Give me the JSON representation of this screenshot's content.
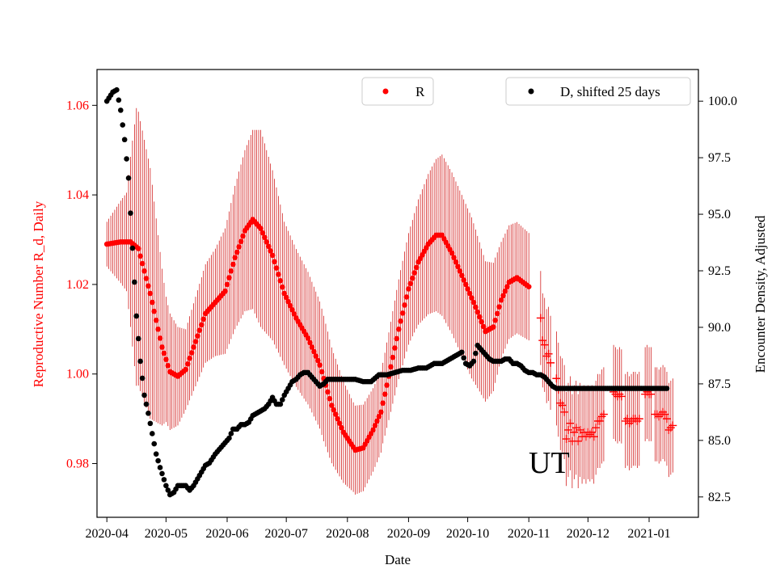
{
  "chart_data": {
    "type": "scatter",
    "annotation": "UT",
    "xlabel": "Date",
    "ylabel_left": "Reproductive Number R_d, Daily",
    "ylabel_right": "Encounter Density, Adjusted",
    "x_ticks": [
      "2020-04",
      "2020-05",
      "2020-06",
      "2020-07",
      "2020-08",
      "2020-09",
      "2020-10",
      "2020-11",
      "2020-12",
      "2021-01"
    ],
    "y_left_ticks": [
      "0.98",
      "1.00",
      "1.02",
      "1.04",
      "1.06"
    ],
    "y_left_range": [
      0.968,
      1.068
    ],
    "y_right_ticks": [
      "82.5",
      "85.0",
      "87.5",
      "90.0",
      "92.5",
      "95.0",
      "97.5",
      "100.0"
    ],
    "y_right_range": [
      81.6,
      101.4
    ],
    "x_range_days": [
      -5,
      300
    ],
    "legend": {
      "r_label": "R",
      "d_label": "D, shifted 25 days"
    },
    "series_R_knots": [
      [
        0,
        1.029
      ],
      [
        7,
        1.0295
      ],
      [
        12,
        1.0295
      ],
      [
        16,
        1.028
      ],
      [
        22,
        1.018
      ],
      [
        28,
        1.006
      ],
      [
        32,
        1.0005
      ],
      [
        36,
        0.9995
      ],
      [
        40,
        1.001
      ],
      [
        44,
        1.006
      ],
      [
        50,
        1.0135
      ],
      [
        56,
        1.0165
      ],
      [
        60,
        1.0185
      ],
      [
        65,
        1.026
      ],
      [
        70,
        1.032
      ],
      [
        74,
        1.0345
      ],
      [
        78,
        1.0325
      ],
      [
        84,
        1.0265
      ],
      [
        90,
        1.018
      ],
      [
        96,
        1.0125
      ],
      [
        102,
        1.008
      ],
      [
        108,
        1.002
      ],
      [
        114,
        0.993
      ],
      [
        120,
        0.987
      ],
      [
        126,
        0.983
      ],
      [
        130,
        0.9835
      ],
      [
        135,
        0.9875
      ],
      [
        139,
        0.9915
      ],
      [
        143,
        0.9995
      ],
      [
        148,
        1.01
      ],
      [
        153,
        1.019
      ],
      [
        158,
        1.025
      ],
      [
        163,
        1.029
      ],
      [
        167,
        1.031
      ],
      [
        170,
        1.031
      ],
      [
        175,
        1.027
      ],
      [
        180,
        1.022
      ],
      [
        186,
        1.016
      ],
      [
        192,
        1.0095
      ],
      [
        196,
        1.0105
      ],
      [
        200,
        1.0165
      ],
      [
        204,
        1.0205
      ],
      [
        208,
        1.0215
      ],
      [
        211,
        1.0205
      ],
      [
        214,
        1.0195
      ]
    ],
    "series_R_spread_knots": [
      [
        0,
        0.005
      ],
      [
        10,
        0.011
      ],
      [
        15,
        0.031
      ],
      [
        22,
        0.028
      ],
      [
        30,
        0.014
      ],
      [
        40,
        0.009
      ],
      [
        55,
        0.012
      ],
      [
        70,
        0.018
      ],
      [
        78,
        0.022
      ],
      [
        90,
        0.016
      ],
      [
        110,
        0.014
      ],
      [
        125,
        0.01
      ],
      [
        140,
        0.009
      ],
      [
        155,
        0.013
      ],
      [
        170,
        0.018
      ],
      [
        185,
        0.018
      ],
      [
        200,
        0.013
      ],
      [
        214,
        0.012
      ]
    ],
    "series_R_plus": [
      [
        220,
        1.0125
      ],
      [
        221,
        1.0075
      ],
      [
        222,
        1.0065
      ],
      [
        223,
        1.004
      ],
      [
        224,
        1.0045
      ],
      [
        225,
        1.0025
      ],
      [
        228,
        0.999
      ],
      [
        229,
        0.9965
      ],
      [
        230,
        0.9935
      ],
      [
        231,
        0.993
      ],
      [
        232,
        0.9915
      ],
      [
        233,
        0.9855
      ],
      [
        234,
        0.9875
      ],
      [
        235,
        0.989
      ],
      [
        236,
        0.985
      ],
      [
        237,
        0.987
      ],
      [
        238,
        0.988
      ],
      [
        239,
        0.985
      ],
      [
        240,
        0.9875
      ],
      [
        241,
        0.986
      ],
      [
        242,
        0.987
      ],
      [
        243,
        0.986
      ],
      [
        244,
        0.987
      ],
      [
        245,
        0.9865
      ],
      [
        246,
        0.987
      ],
      [
        247,
        0.986
      ],
      [
        248,
        0.988
      ],
      [
        249,
        0.9895
      ],
      [
        250,
        0.9895
      ],
      [
        251,
        0.9905
      ],
      [
        252,
        0.991
      ],
      [
        257,
        0.996
      ],
      [
        258,
        0.9955
      ],
      [
        259,
        0.995
      ],
      [
        260,
        0.9955
      ],
      [
        261,
        0.995
      ],
      [
        263,
        0.9895
      ],
      [
        264,
        0.99
      ],
      [
        265,
        0.989
      ],
      [
        266,
        0.9895
      ],
      [
        267,
        0.99
      ],
      [
        268,
        0.99
      ],
      [
        269,
        0.9895
      ],
      [
        270,
        0.99
      ],
      [
        273,
        0.9955
      ],
      [
        274,
        0.996
      ],
      [
        275,
        0.9955
      ],
      [
        276,
        0.9955
      ],
      [
        278,
        0.991
      ],
      [
        279,
        0.991
      ],
      [
        280,
        0.9905
      ],
      [
        281,
        0.991
      ],
      [
        282,
        0.9915
      ],
      [
        283,
        0.991
      ],
      [
        284,
        0.99
      ],
      [
        285,
        0.9875
      ],
      [
        286,
        0.988
      ],
      [
        287,
        0.9885
      ]
    ],
    "series_R_plus_spread": 0.0105,
    "series_D_knots": [
      [
        0,
        100.0
      ],
      [
        3,
        100.4
      ],
      [
        5,
        100.5
      ],
      [
        7,
        99.6
      ],
      [
        9,
        98.3
      ],
      [
        11,
        96.6
      ],
      [
        13,
        93.5
      ],
      [
        15,
        90.5
      ],
      [
        17,
        88.5
      ],
      [
        19,
        87.0
      ],
      [
        21,
        86.2
      ],
      [
        23,
        85.3
      ],
      [
        25,
        84.4
      ],
      [
        27,
        83.8
      ],
      [
        30,
        83.0
      ],
      [
        32,
        82.6
      ],
      [
        34,
        82.7
      ],
      [
        36,
        83.0
      ],
      [
        38,
        83.0
      ],
      [
        40,
        83.0
      ],
      [
        42,
        82.8
      ],
      [
        44,
        83.0
      ],
      [
        46,
        83.3
      ],
      [
        48,
        83.6
      ],
      [
        50,
        83.9
      ],
      [
        52,
        84.0
      ],
      [
        55,
        84.4
      ],
      [
        58,
        84.7
      ],
      [
        60,
        84.9
      ],
      [
        62,
        85.1
      ],
      [
        64,
        85.5
      ],
      [
        66,
        85.5
      ],
      [
        68,
        85.7
      ],
      [
        70,
        85.7
      ],
      [
        72,
        85.8
      ],
      [
        74,
        86.1
      ],
      [
        76,
        86.2
      ],
      [
        78,
        86.3
      ],
      [
        80,
        86.4
      ],
      [
        82,
        86.6
      ],
      [
        84,
        86.9
      ],
      [
        86,
        86.6
      ],
      [
        88,
        86.6
      ],
      [
        90,
        87.0
      ],
      [
        92,
        87.3
      ],
      [
        94,
        87.6
      ],
      [
        96,
        87.7
      ],
      [
        98,
        87.9
      ],
      [
        100,
        88.0
      ],
      [
        102,
        88.0
      ],
      [
        104,
        87.8
      ],
      [
        106,
        87.6
      ],
      [
        108,
        87.4
      ],
      [
        110,
        87.5
      ],
      [
        112,
        87.7
      ],
      [
        116,
        87.7
      ],
      [
        120,
        87.7
      ],
      [
        126,
        87.7
      ],
      [
        130,
        87.6
      ],
      [
        134,
        87.6
      ],
      [
        138,
        87.9
      ],
      [
        142,
        87.9
      ],
      [
        146,
        88.0
      ],
      [
        150,
        88.1
      ],
      [
        154,
        88.1
      ],
      [
        158,
        88.2
      ],
      [
        162,
        88.2
      ],
      [
        166,
        88.4
      ],
      [
        170,
        88.4
      ],
      [
        174,
        88.6
      ],
      [
        178,
        88.8
      ],
      [
        180,
        88.9
      ],
      [
        182,
        88.4
      ],
      [
        184,
        88.3
      ],
      [
        186,
        88.5
      ],
      [
        188,
        89.2
      ],
      [
        190,
        89.0
      ],
      [
        192,
        88.8
      ],
      [
        194,
        88.6
      ],
      [
        196,
        88.5
      ],
      [
        198,
        88.5
      ],
      [
        200,
        88.5
      ],
      [
        202,
        88.6
      ],
      [
        204,
        88.6
      ],
      [
        206,
        88.4
      ],
      [
        208,
        88.4
      ],
      [
        210,
        88.3
      ],
      [
        212,
        88.1
      ],
      [
        214,
        88.0
      ],
      [
        216,
        88.0
      ],
      [
        218,
        87.9
      ],
      [
        220,
        87.9
      ],
      [
        222,
        87.8
      ],
      [
        224,
        87.6
      ],
      [
        226,
        87.4
      ],
      [
        228,
        87.3
      ],
      [
        232,
        87.3
      ],
      [
        240,
        87.3
      ],
      [
        260,
        87.3
      ],
      [
        290,
        87.3
      ]
    ]
  }
}
